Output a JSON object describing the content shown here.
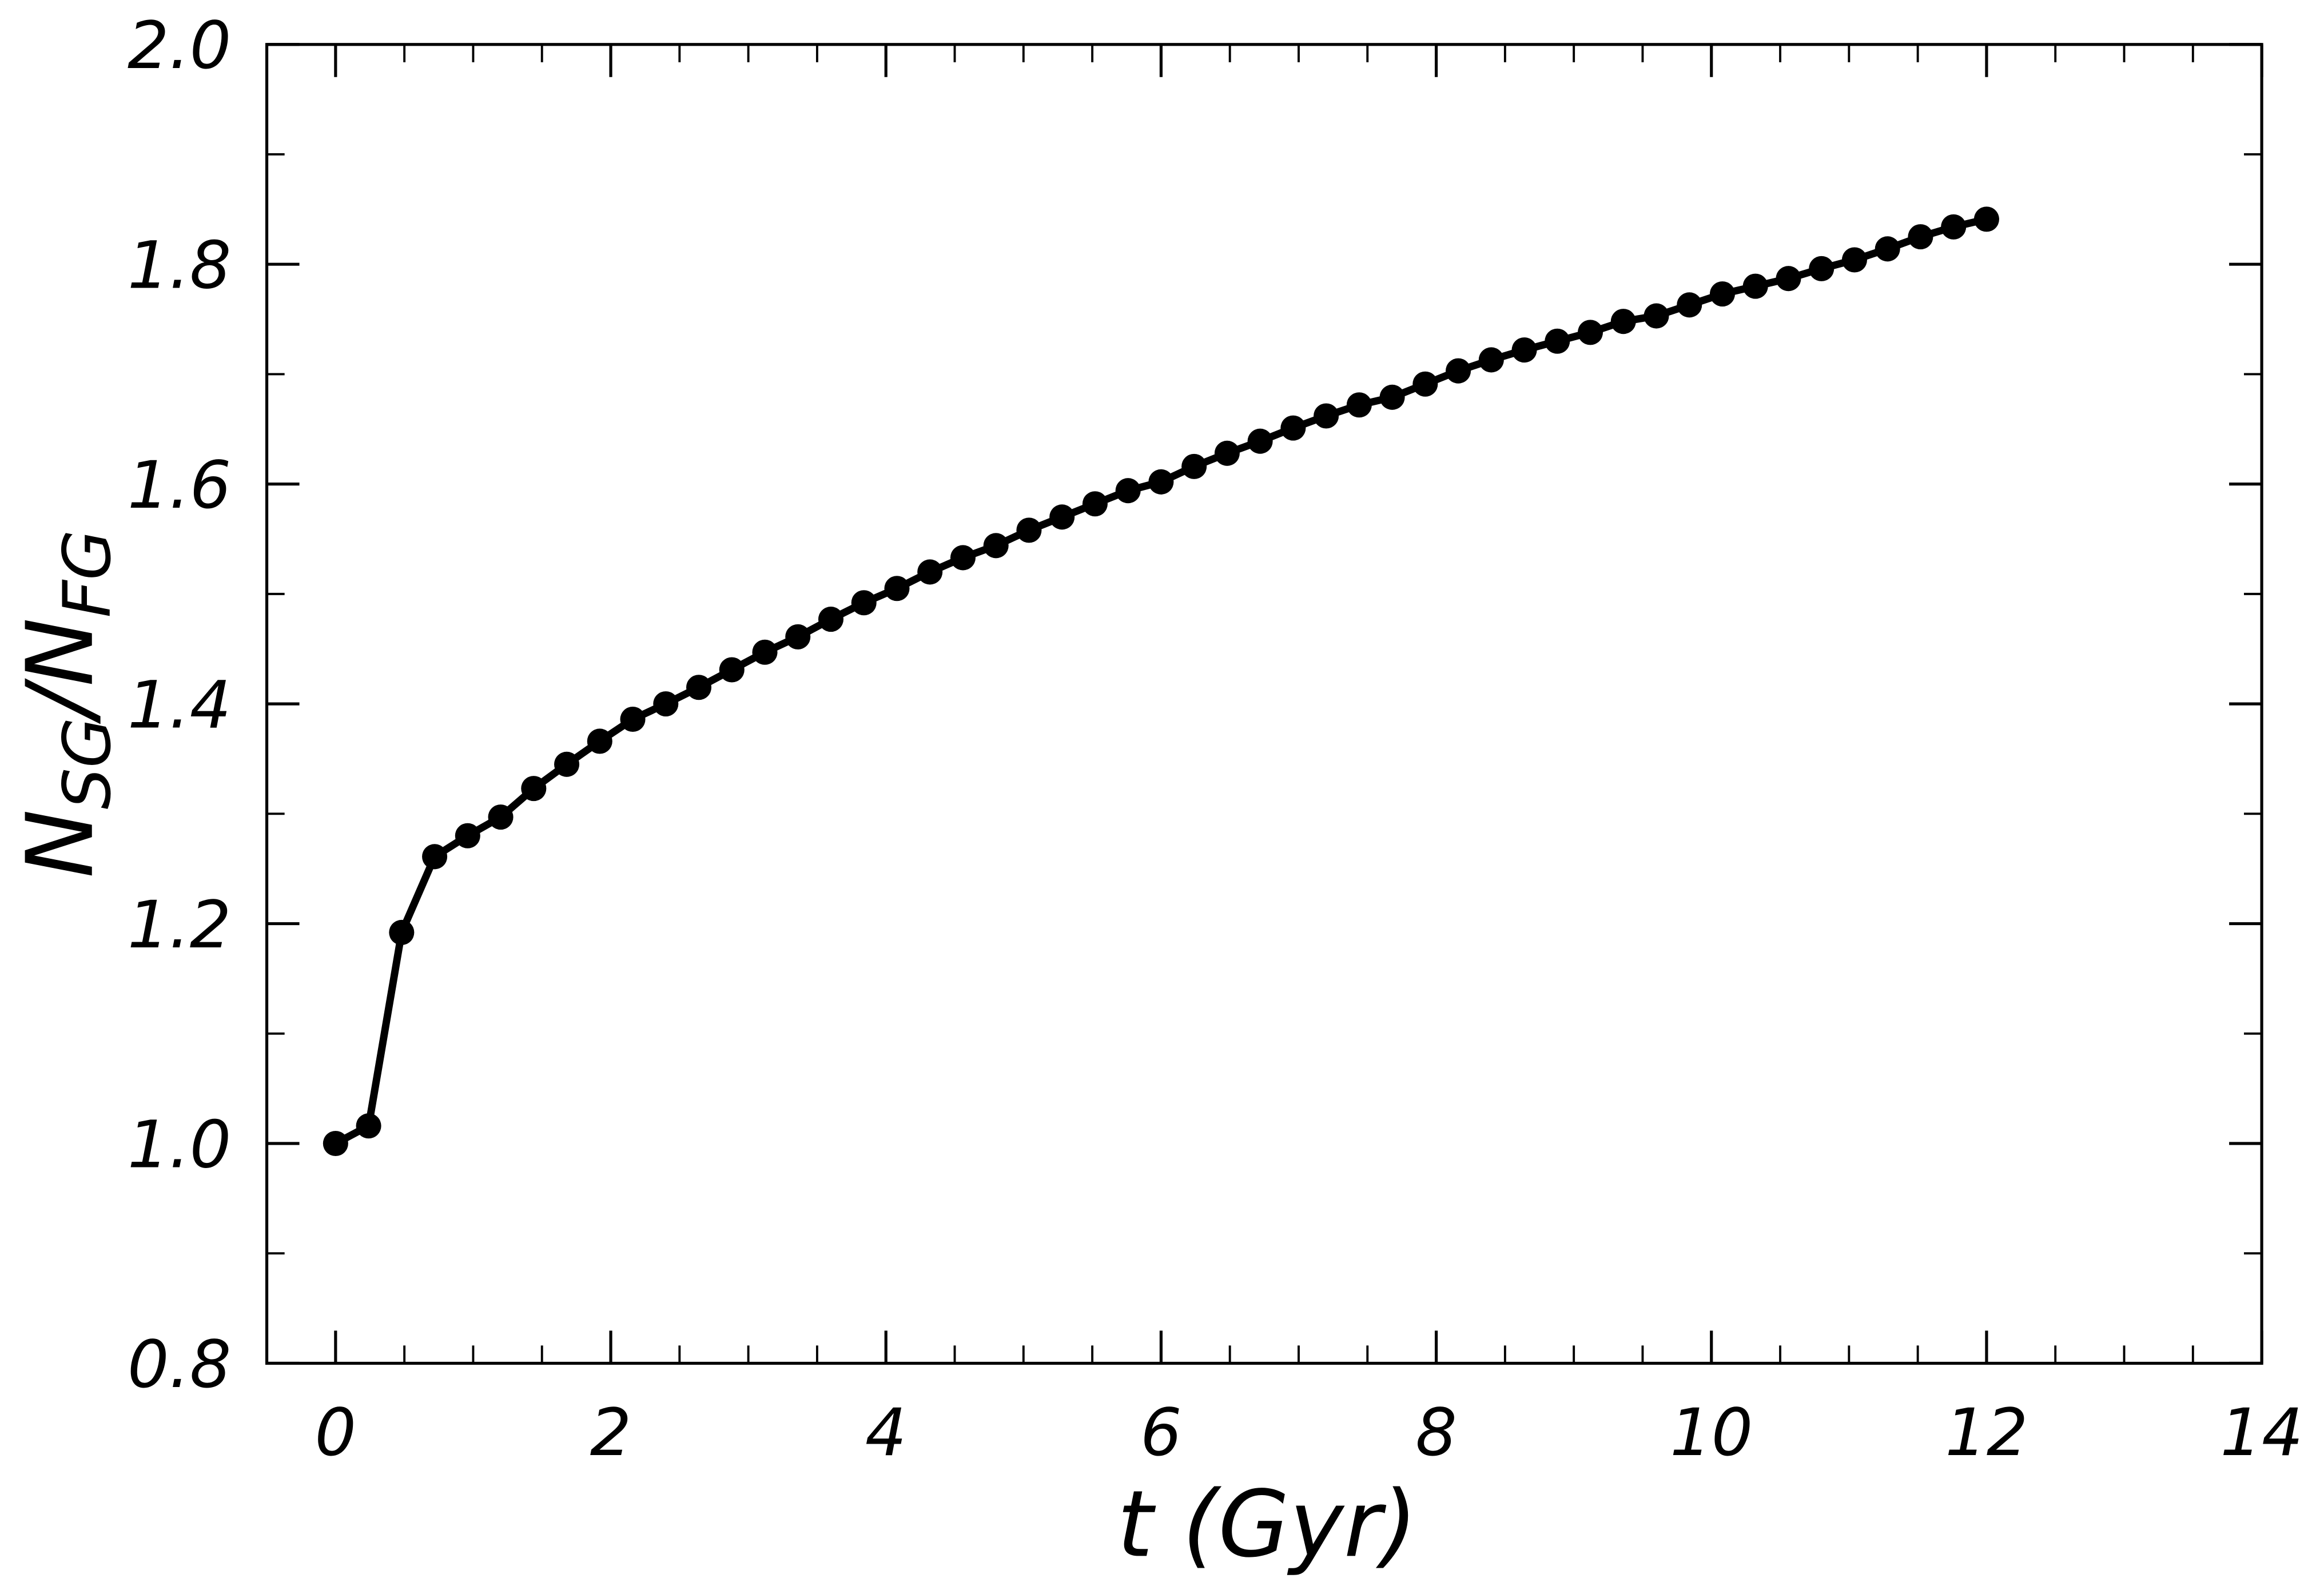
{
  "chart_data": {
    "type": "line",
    "xlabel": "t (Gyr)",
    "ylabel": [
      "N",
      "SG",
      "/N",
      "FG"
    ],
    "x": [
      0,
      0.24,
      0.48,
      0.72,
      0.96,
      1.2,
      1.44,
      1.68,
      1.92,
      2.16,
      2.4,
      2.64,
      2.88,
      3.12,
      3.36,
      3.6,
      3.84,
      4.08,
      4.32,
      4.56,
      4.8,
      5.04,
      5.28,
      5.52,
      5.76,
      6.0,
      6.24,
      6.48,
      6.72,
      6.96,
      7.2,
      7.44,
      7.68,
      7.92,
      8.16,
      8.4,
      8.64,
      8.88,
      9.12,
      9.36,
      9.6,
      9.84,
      10.08,
      10.32,
      10.56,
      10.8,
      11.04,
      11.28,
      11.52,
      11.76,
      12.0
    ],
    "series": [
      {
        "color": "#000000",
        "values": [
          1.0,
          1.016,
          1.192,
          1.261,
          1.28,
          1.297,
          1.323,
          1.345,
          1.366,
          1.386,
          1.4,
          1.415,
          1.431,
          1.447,
          1.461,
          1.477,
          1.492,
          1.505,
          1.52,
          1.533,
          1.544,
          1.558,
          1.57,
          1.582,
          1.594,
          1.602,
          1.616,
          1.628,
          1.639,
          1.651,
          1.662,
          1.672,
          1.679,
          1.691,
          1.703,
          1.713,
          1.722,
          1.73,
          1.738,
          1.748,
          1.753,
          1.763,
          1.773,
          1.78,
          1.787,
          1.796,
          1.804,
          1.814,
          1.825,
          1.834,
          1.841
        ]
      }
    ],
    "xlim": [
      -0.5,
      14
    ],
    "ylim": [
      0.8,
      2.0
    ],
    "xticks": [
      0,
      2,
      4,
      6,
      8,
      10,
      12,
      14
    ],
    "yticks": [
      0.8,
      {
        "value": 1.0,
        "label": "1.0"
      },
      1.2,
      1.4,
      1.6,
      1.8,
      {
        "value": 2.0,
        "label": "2.0"
      }
    ],
    "grid": false
  }
}
